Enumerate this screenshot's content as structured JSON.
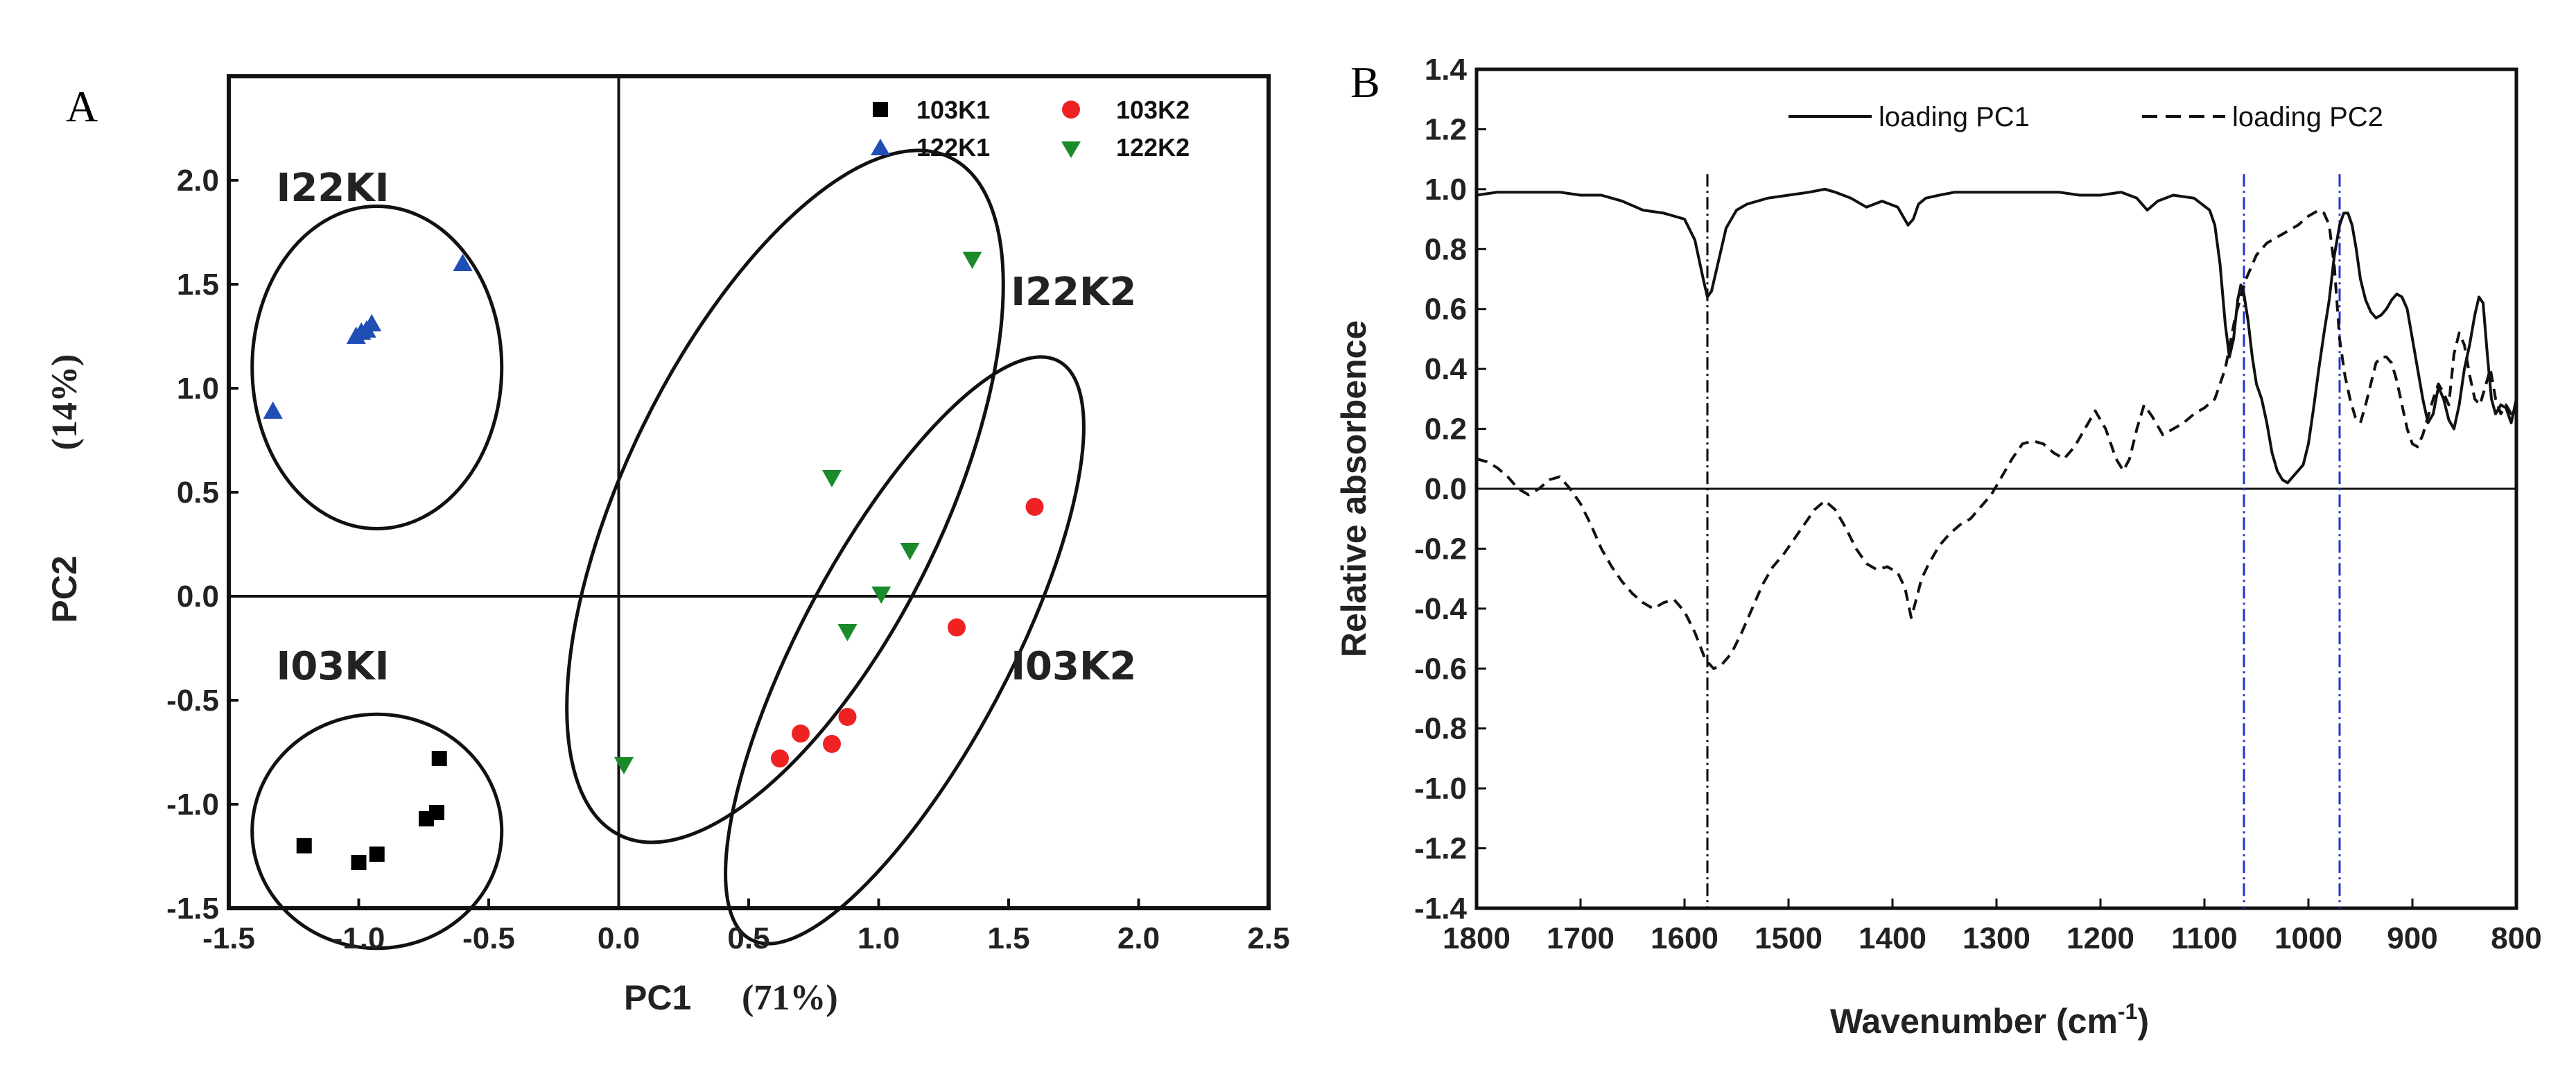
{
  "chart_data": [
    {
      "panel": "A",
      "type": "scatter",
      "xlabel": "PC1",
      "xlabel_pct": "(71%)",
      "ylabel": "PC2",
      "ylabel_pct": "(14%)",
      "xlim": [
        -1.5,
        2.5
      ],
      "ylim": [
        -1.5,
        2.5
      ],
      "xticks": [
        "-1.5",
        "-1.0",
        "-0.5",
        "0.0",
        "0.5",
        "1.0",
        "1.5",
        "2.0",
        "2.5"
      ],
      "xtick_values": [
        -1.5,
        -1.0,
        -0.5,
        0.0,
        0.5,
        1.0,
        1.5,
        2.0,
        2.5
      ],
      "yticks": [
        "-1.5",
        "-1.0",
        "-0.5",
        "0.0",
        "0.5",
        "1.0",
        "1.5",
        "2.0"
      ],
      "ytick_values": [
        -1.5,
        -1.0,
        -0.5,
        0.0,
        0.5,
        1.0,
        1.5,
        2.0
      ],
      "legend_position": "top-right",
      "series": [
        {
          "name": "103K1",
          "marker": "square",
          "color": "#000000",
          "points": [
            [
              -1.21,
              -1.2
            ],
            [
              -1.0,
              -1.28
            ],
            [
              -0.93,
              -1.24
            ],
            [
              -0.74,
              -1.07
            ],
            [
              -0.7,
              -1.04
            ],
            [
              -0.69,
              -0.78
            ]
          ]
        },
        {
          "name": "103K2",
          "marker": "circle",
          "color": "#ee2222",
          "points": [
            [
              0.62,
              -0.78
            ],
            [
              0.7,
              -0.66
            ],
            [
              0.82,
              -0.71
            ],
            [
              0.88,
              -0.58
            ],
            [
              1.3,
              -0.15
            ],
            [
              1.6,
              0.43
            ]
          ]
        },
        {
          "name": "122K1",
          "marker": "triangle-up",
          "color": "#1f4fb4",
          "points": [
            [
              -1.33,
              0.89
            ],
            [
              -1.01,
              1.25
            ],
            [
              -0.99,
              1.27
            ],
            [
              -0.97,
              1.28
            ],
            [
              -0.95,
              1.31
            ],
            [
              -0.6,
              1.6
            ]
          ]
        },
        {
          "name": "122K2",
          "marker": "triangle-down",
          "color": "#1a8a2a",
          "points": [
            [
              0.02,
              -0.81
            ],
            [
              0.82,
              0.57
            ],
            [
              0.88,
              -0.17
            ],
            [
              1.01,
              0.01
            ],
            [
              1.12,
              0.22
            ],
            [
              1.36,
              1.62
            ]
          ]
        }
      ],
      "clusters": [
        {
          "label": "I22KI",
          "label_at": [
            -1.1,
            1.9
          ],
          "ellipse": {
            "cx": -0.93,
            "cy": 1.1,
            "rx": 0.48,
            "ry": 0.62,
            "angle": 0
          }
        },
        {
          "label": "I03KI",
          "label_at": [
            -1.1,
            -0.4
          ],
          "ellipse": {
            "cx": -0.93,
            "cy": -1.13,
            "rx": 0.48,
            "ry": 0.45,
            "angle": 0
          }
        },
        {
          "label": "I22K2",
          "label_at": [
            1.75,
            1.4
          ],
          "ellipse": {
            "cx": 0.64,
            "cy": 0.48,
            "rx": 0.61,
            "ry": 1.45,
            "angle": 26
          }
        },
        {
          "label": "I03K2",
          "label_at": [
            1.75,
            -0.4
          ],
          "ellipse": {
            "cx": 1.1,
            "cy": -0.26,
            "rx": 0.4,
            "ry": 1.26,
            "angle": 28
          }
        }
      ]
    },
    {
      "panel": "B",
      "type": "line",
      "xlabel": "Wavenumber (cm",
      "xlabel_sup": "-1",
      "xlabel_tail": ")",
      "ylabel": "Relative absorbence",
      "xlim": [
        1800,
        800
      ],
      "ylim": [
        -1.4,
        1.4
      ],
      "xticks": [
        "1800",
        "1700",
        "1600",
        "1500",
        "1400",
        "1300",
        "1200",
        "1100",
        "1000",
        "900",
        "800"
      ],
      "xtick_values": [
        1800,
        1700,
        1600,
        1500,
        1400,
        1300,
        1200,
        1100,
        1000,
        900,
        800
      ],
      "yticks": [
        "1.4",
        "1.2",
        "1.0",
        "0.8",
        "0.6",
        "0.4",
        "0.2",
        "0.0",
        "-0.2",
        "-0.4",
        "-0.6",
        "-0.8",
        "-1.0",
        "-1.2",
        "-1.4"
      ],
      "ytick_values": [
        1.4,
        1.2,
        1.0,
        0.8,
        0.6,
        0.4,
        0.2,
        0.0,
        -0.2,
        -0.4,
        -0.6,
        -0.8,
        -1.0,
        -1.2,
        -1.4
      ],
      "legend_position": "top",
      "reference_lines": [
        {
          "x": 1578,
          "style": "dash-dot",
          "color": "#000000"
        },
        {
          "x": 1062,
          "style": "dash-dot",
          "color": "#2233cc"
        },
        {
          "x": 970,
          "style": "dash-dot",
          "color": "#2233cc"
        }
      ],
      "series": [
        {
          "name": "loading PC1",
          "style": "solid",
          "x": [
            1800,
            1780,
            1760,
            1740,
            1720,
            1700,
            1680,
            1660,
            1640,
            1620,
            1600,
            1590,
            1582,
            1578,
            1574,
            1568,
            1560,
            1550,
            1540,
            1520,
            1500,
            1480,
            1465,
            1455,
            1440,
            1425,
            1410,
            1395,
            1385,
            1380,
            1375,
            1368,
            1355,
            1340,
            1320,
            1300,
            1280,
            1260,
            1240,
            1220,
            1200,
            1180,
            1165,
            1155,
            1145,
            1130,
            1110,
            1095,
            1090,
            1085,
            1080,
            1076,
            1072,
            1068,
            1065,
            1062,
            1058,
            1054,
            1050,
            1045,
            1040,
            1035,
            1030,
            1025,
            1020,
            1015,
            1010,
            1005,
            1000,
            995,
            990,
            985,
            980,
            975,
            970,
            966,
            962,
            958,
            954,
            950,
            945,
            940,
            935,
            930,
            925,
            920,
            915,
            910,
            905,
            900,
            895,
            890,
            885,
            880,
            875,
            870,
            865,
            860,
            855,
            850,
            845,
            840,
            836,
            832,
            828,
            824,
            820,
            815,
            810,
            805,
            800
          ],
          "y": [
            0.98,
            0.99,
            0.99,
            0.99,
            0.99,
            0.98,
            0.98,
            0.96,
            0.93,
            0.92,
            0.9,
            0.83,
            0.7,
            0.64,
            0.66,
            0.75,
            0.87,
            0.93,
            0.95,
            0.97,
            0.98,
            0.99,
            1.0,
            0.99,
            0.97,
            0.94,
            0.96,
            0.94,
            0.88,
            0.9,
            0.95,
            0.97,
            0.98,
            0.99,
            0.99,
            0.99,
            0.99,
            0.99,
            0.99,
            0.98,
            0.98,
            0.99,
            0.97,
            0.93,
            0.96,
            0.98,
            0.97,
            0.93,
            0.88,
            0.75,
            0.55,
            0.44,
            0.5,
            0.63,
            0.68,
            0.65,
            0.56,
            0.44,
            0.35,
            0.3,
            0.22,
            0.12,
            0.06,
            0.03,
            0.02,
            0.04,
            0.06,
            0.08,
            0.15,
            0.27,
            0.4,
            0.52,
            0.63,
            0.78,
            0.88,
            0.92,
            0.92,
            0.88,
            0.8,
            0.7,
            0.63,
            0.59,
            0.57,
            0.58,
            0.6,
            0.63,
            0.65,
            0.64,
            0.6,
            0.5,
            0.4,
            0.3,
            0.22,
            0.25,
            0.34,
            0.3,
            0.23,
            0.2,
            0.28,
            0.4,
            0.48,
            0.58,
            0.64,
            0.62,
            0.45,
            0.3,
            0.25,
            0.28,
            0.27,
            0.22,
            0.3
          ]
        },
        {
          "name": "loading PC2",
          "style": "dashed",
          "x": [
            1800,
            1790,
            1780,
            1770,
            1760,
            1750,
            1740,
            1730,
            1720,
            1710,
            1700,
            1690,
            1680,
            1670,
            1660,
            1650,
            1640,
            1630,
            1620,
            1610,
            1600,
            1590,
            1580,
            1572,
            1565,
            1555,
            1545,
            1535,
            1525,
            1515,
            1505,
            1495,
            1485,
            1475,
            1465,
            1455,
            1445,
            1435,
            1425,
            1415,
            1405,
            1395,
            1388,
            1382,
            1378,
            1372,
            1365,
            1355,
            1345,
            1335,
            1325,
            1315,
            1305,
            1295,
            1285,
            1275,
            1265,
            1255,
            1245,
            1235,
            1225,
            1215,
            1205,
            1195,
            1185,
            1178,
            1172,
            1165,
            1158,
            1150,
            1140,
            1130,
            1120,
            1110,
            1100,
            1090,
            1080,
            1070,
            1060,
            1050,
            1040,
            1030,
            1020,
            1010,
            1000,
            990,
            985,
            980,
            975,
            970,
            965,
            960,
            955,
            950,
            945,
            940,
            935,
            930,
            925,
            920,
            915,
            910,
            905,
            900,
            895,
            890,
            885,
            880,
            875,
            870,
            865,
            860,
            855,
            850,
            845,
            840,
            835,
            830,
            825,
            820,
            815,
            810,
            805,
            800
          ],
          "y": [
            0.1,
            0.09,
            0.07,
            0.04,
            0.0,
            -0.02,
            0.0,
            0.03,
            0.04,
            0.0,
            -0.05,
            -0.12,
            -0.2,
            -0.26,
            -0.31,
            -0.35,
            -0.38,
            -0.4,
            -0.38,
            -0.37,
            -0.41,
            -0.48,
            -0.57,
            -0.6,
            -0.59,
            -0.55,
            -0.48,
            -0.4,
            -0.32,
            -0.26,
            -0.22,
            -0.17,
            -0.12,
            -0.07,
            -0.04,
            -0.07,
            -0.13,
            -0.2,
            -0.25,
            -0.27,
            -0.26,
            -0.28,
            -0.33,
            -0.43,
            -0.38,
            -0.3,
            -0.25,
            -0.19,
            -0.15,
            -0.12,
            -0.1,
            -0.06,
            -0.02,
            0.04,
            0.1,
            0.15,
            0.16,
            0.15,
            0.12,
            0.1,
            0.14,
            0.2,
            0.26,
            0.2,
            0.1,
            0.06,
            0.1,
            0.2,
            0.28,
            0.24,
            0.18,
            0.2,
            0.22,
            0.25,
            0.27,
            0.3,
            0.4,
            0.58,
            0.7,
            0.78,
            0.82,
            0.84,
            0.86,
            0.88,
            0.91,
            0.93,
            0.92,
            0.88,
            0.74,
            0.5,
            0.38,
            0.3,
            0.24,
            0.22,
            0.28,
            0.35,
            0.42,
            0.44,
            0.44,
            0.42,
            0.36,
            0.28,
            0.2,
            0.15,
            0.14,
            0.18,
            0.24,
            0.3,
            0.35,
            0.32,
            0.28,
            0.45,
            0.52,
            0.48,
            0.38,
            0.3,
            0.28,
            0.34,
            0.4,
            0.3,
            0.25,
            0.28,
            0.25,
            0.27
          ]
        }
      ]
    }
  ]
}
